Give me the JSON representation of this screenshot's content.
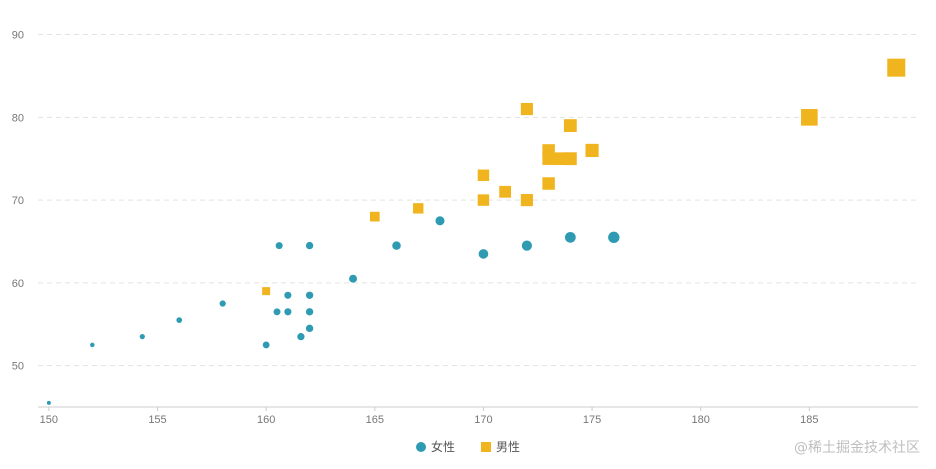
{
  "chart_data": {
    "type": "scatter",
    "title": "",
    "xlabel": "",
    "ylabel": "",
    "xlim": [
      149.5,
      190
    ],
    "ylim": [
      45,
      92
    ],
    "xticks": [
      150,
      155,
      160,
      165,
      170,
      175,
      180,
      185
    ],
    "yticks": [
      50,
      60,
      70,
      80,
      90
    ],
    "x_tick_labels": [
      "150",
      "155",
      "160",
      "165",
      "170",
      "175",
      "180",
      "185"
    ],
    "y_tick_labels": [
      "50",
      "60",
      "70",
      "80",
      "90"
    ],
    "grid": "horizontal dashed",
    "legend_position": "bottom-center",
    "series": [
      {
        "name": "女性",
        "color": "#2f9bb3",
        "marker": "circle",
        "points": [
          [
            150,
            45.5
          ],
          [
            152,
            52.5
          ],
          [
            154.3,
            53.5
          ],
          [
            156,
            55.5
          ],
          [
            158,
            57.5
          ],
          [
            160,
            52.5
          ],
          [
            160.6,
            64.5
          ],
          [
            160.5,
            56.5
          ],
          [
            161,
            58.5
          ],
          [
            161,
            56.5
          ],
          [
            161.6,
            53.5
          ],
          [
            162,
            64.5
          ],
          [
            162,
            58.5
          ],
          [
            162,
            56.5
          ],
          [
            162,
            54.5
          ],
          [
            164,
            60.5
          ],
          [
            166,
            64.5
          ],
          [
            168,
            67.5
          ],
          [
            170,
            63.5
          ],
          [
            172,
            64.5
          ],
          [
            174,
            65.5
          ],
          [
            176,
            65.5
          ]
        ]
      },
      {
        "name": "男性",
        "color": "#f0b51e",
        "marker": "square",
        "points": [
          [
            160,
            59
          ],
          [
            165,
            68
          ],
          [
            167,
            69
          ],
          [
            170,
            70
          ],
          [
            170,
            73
          ],
          [
            171,
            71
          ],
          [
            172,
            70
          ],
          [
            172,
            81
          ],
          [
            173,
            72
          ],
          [
            173,
            75
          ],
          [
            173,
            76
          ],
          [
            173.5,
            75
          ],
          [
            174,
            75
          ],
          [
            174,
            79
          ],
          [
            175,
            76
          ],
          [
            185,
            80
          ],
          [
            189,
            86
          ]
        ]
      }
    ]
  },
  "watermark": "@稀土掘金技术社区"
}
